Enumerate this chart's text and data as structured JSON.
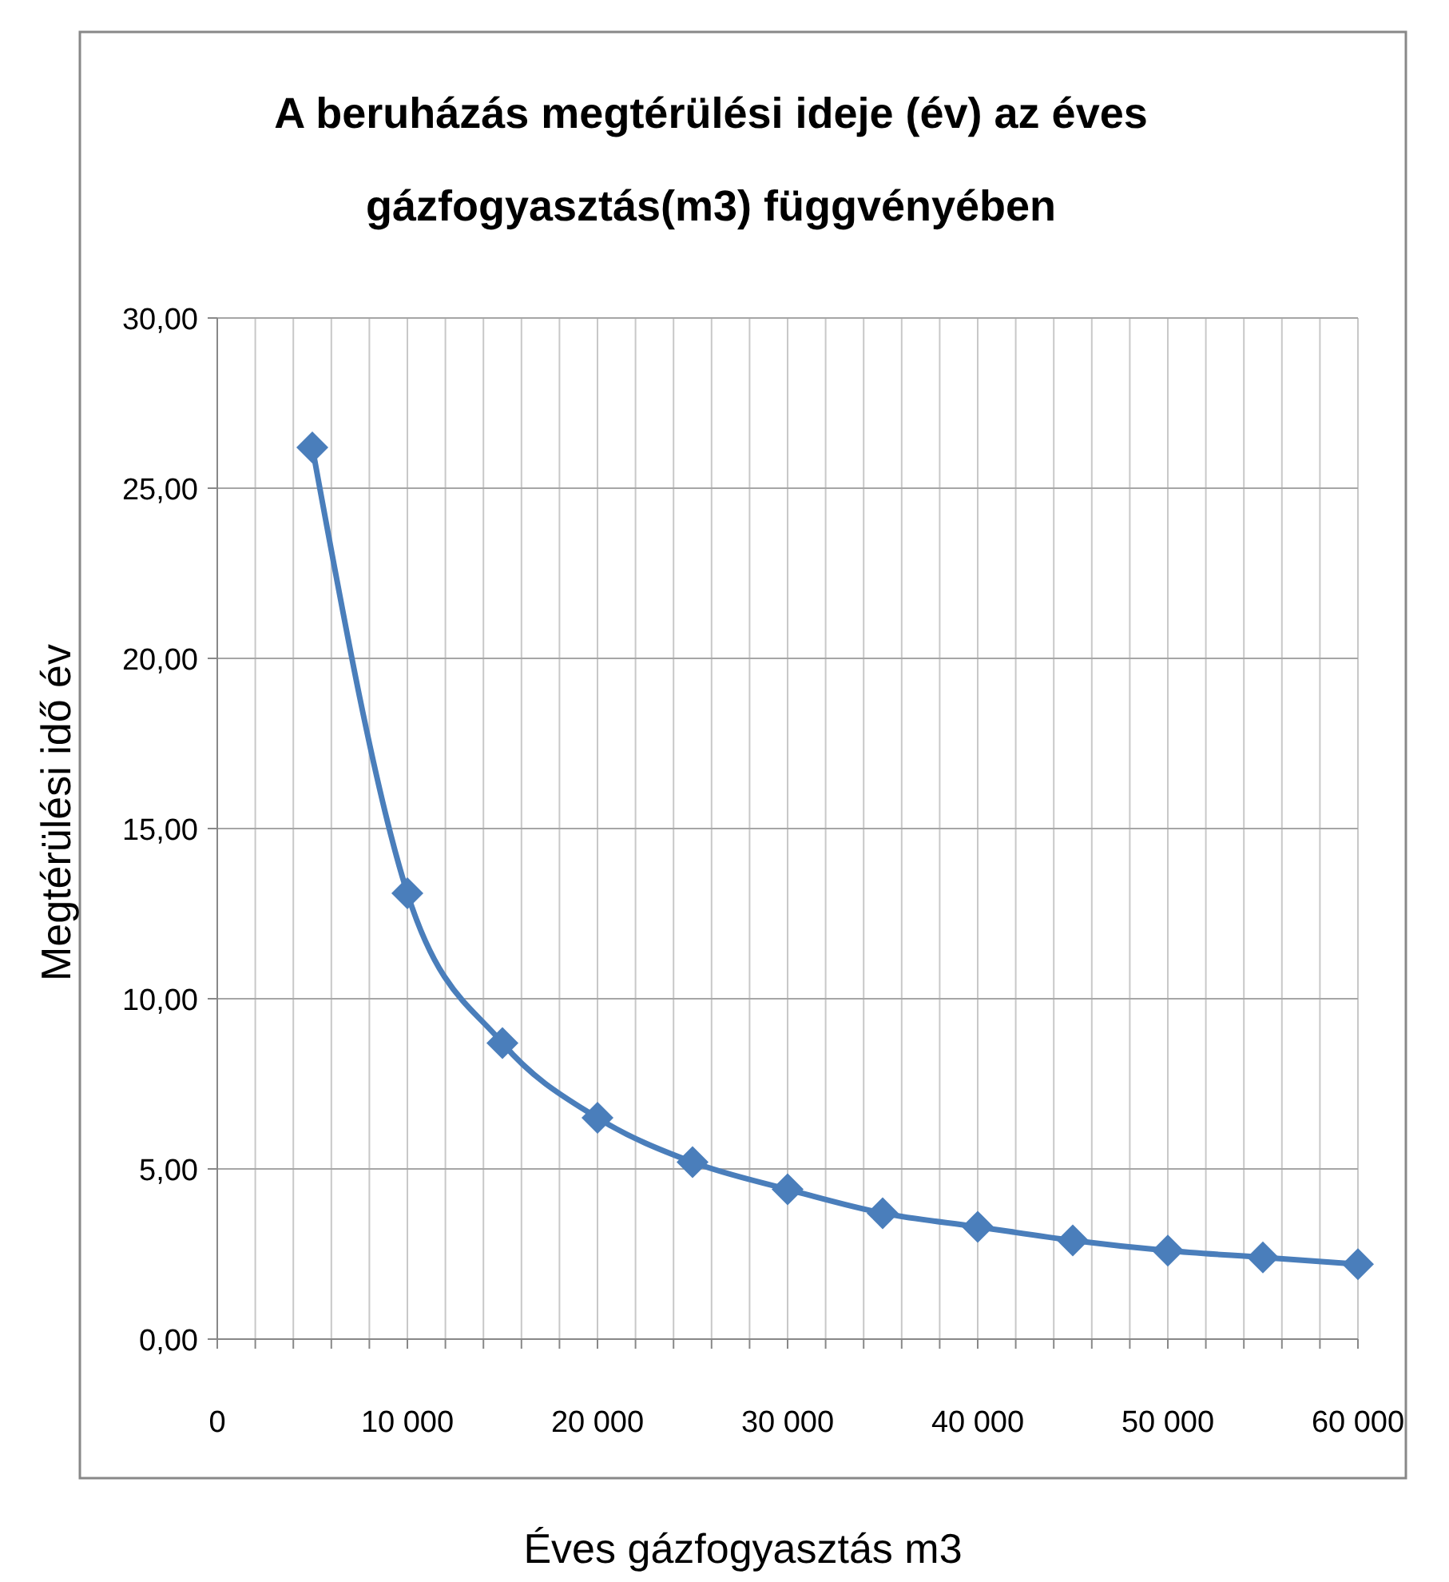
{
  "chart_data": {
    "type": "line",
    "title": "A beruházás megtérülési ideje (év) az éves gázfogyasztás(m3) függvényében",
    "xlabel": "Éves gázfogyasztás m3",
    "ylabel": "Megtérülési idő év",
    "x": [
      5000,
      10000,
      15000,
      20000,
      25000,
      30000,
      35000,
      40000,
      45000,
      50000,
      55000,
      60000
    ],
    "series": [
      {
        "color": "#4a7ebb",
        "values": [
          26.2,
          13.1,
          8.7,
          6.5,
          5.2,
          4.4,
          3.7,
          3.3,
          2.9,
          2.6,
          2.4,
          2.2
        ]
      }
    ],
    "xlim": [
      0,
      60000
    ],
    "xticks": [
      0,
      {
        "value": 2000,
        "label": null
      },
      {
        "value": 4000,
        "label": null
      },
      {
        "value": 6000,
        "label": null
      },
      {
        "value": 8000,
        "label": null
      },
      {
        "value": 10000,
        "label": "10 000"
      },
      {
        "value": 12000,
        "label": null
      },
      {
        "value": 14000,
        "label": null
      },
      {
        "value": 16000,
        "label": null
      },
      {
        "value": 18000,
        "label": null
      },
      {
        "value": 20000,
        "label": "20 000"
      },
      {
        "value": 22000,
        "label": null
      },
      {
        "value": 24000,
        "label": null
      },
      {
        "value": 26000,
        "label": null
      },
      {
        "value": 28000,
        "label": null
      },
      {
        "value": 30000,
        "label": "30 000"
      },
      {
        "value": 32000,
        "label": null
      },
      {
        "value": 34000,
        "label": null
      },
      {
        "value": 36000,
        "label": null
      },
      {
        "value": 38000,
        "label": null
      },
      {
        "value": 40000,
        "label": "40 000"
      },
      {
        "value": 42000,
        "label": null
      },
      {
        "value": 44000,
        "label": null
      },
      {
        "value": 46000,
        "label": null
      },
      {
        "value": 48000,
        "label": null
      },
      {
        "value": 50000,
        "label": "50 000"
      },
      {
        "value": 52000,
        "label": null
      },
      {
        "value": 54000,
        "label": null
      },
      {
        "value": 56000,
        "label": null
      },
      {
        "value": 58000,
        "label": null
      },
      {
        "value": 60000,
        "label": "60 000"
      }
    ],
    "ylim": [
      0,
      30
    ],
    "yticks": [
      {
        "value": 0,
        "label": "0,00"
      },
      {
        "value": 5,
        "label": "5,00"
      },
      {
        "value": 10,
        "label": "10,00"
      },
      {
        "value": 15,
        "label": "15,00"
      },
      {
        "value": 20,
        "label": "20,00"
      },
      {
        "value": 25,
        "label": "25,00"
      },
      {
        "value": 30,
        "label": "30,00"
      }
    ],
    "grid": true,
    "marker": "diamond",
    "line_style": "solid"
  }
}
